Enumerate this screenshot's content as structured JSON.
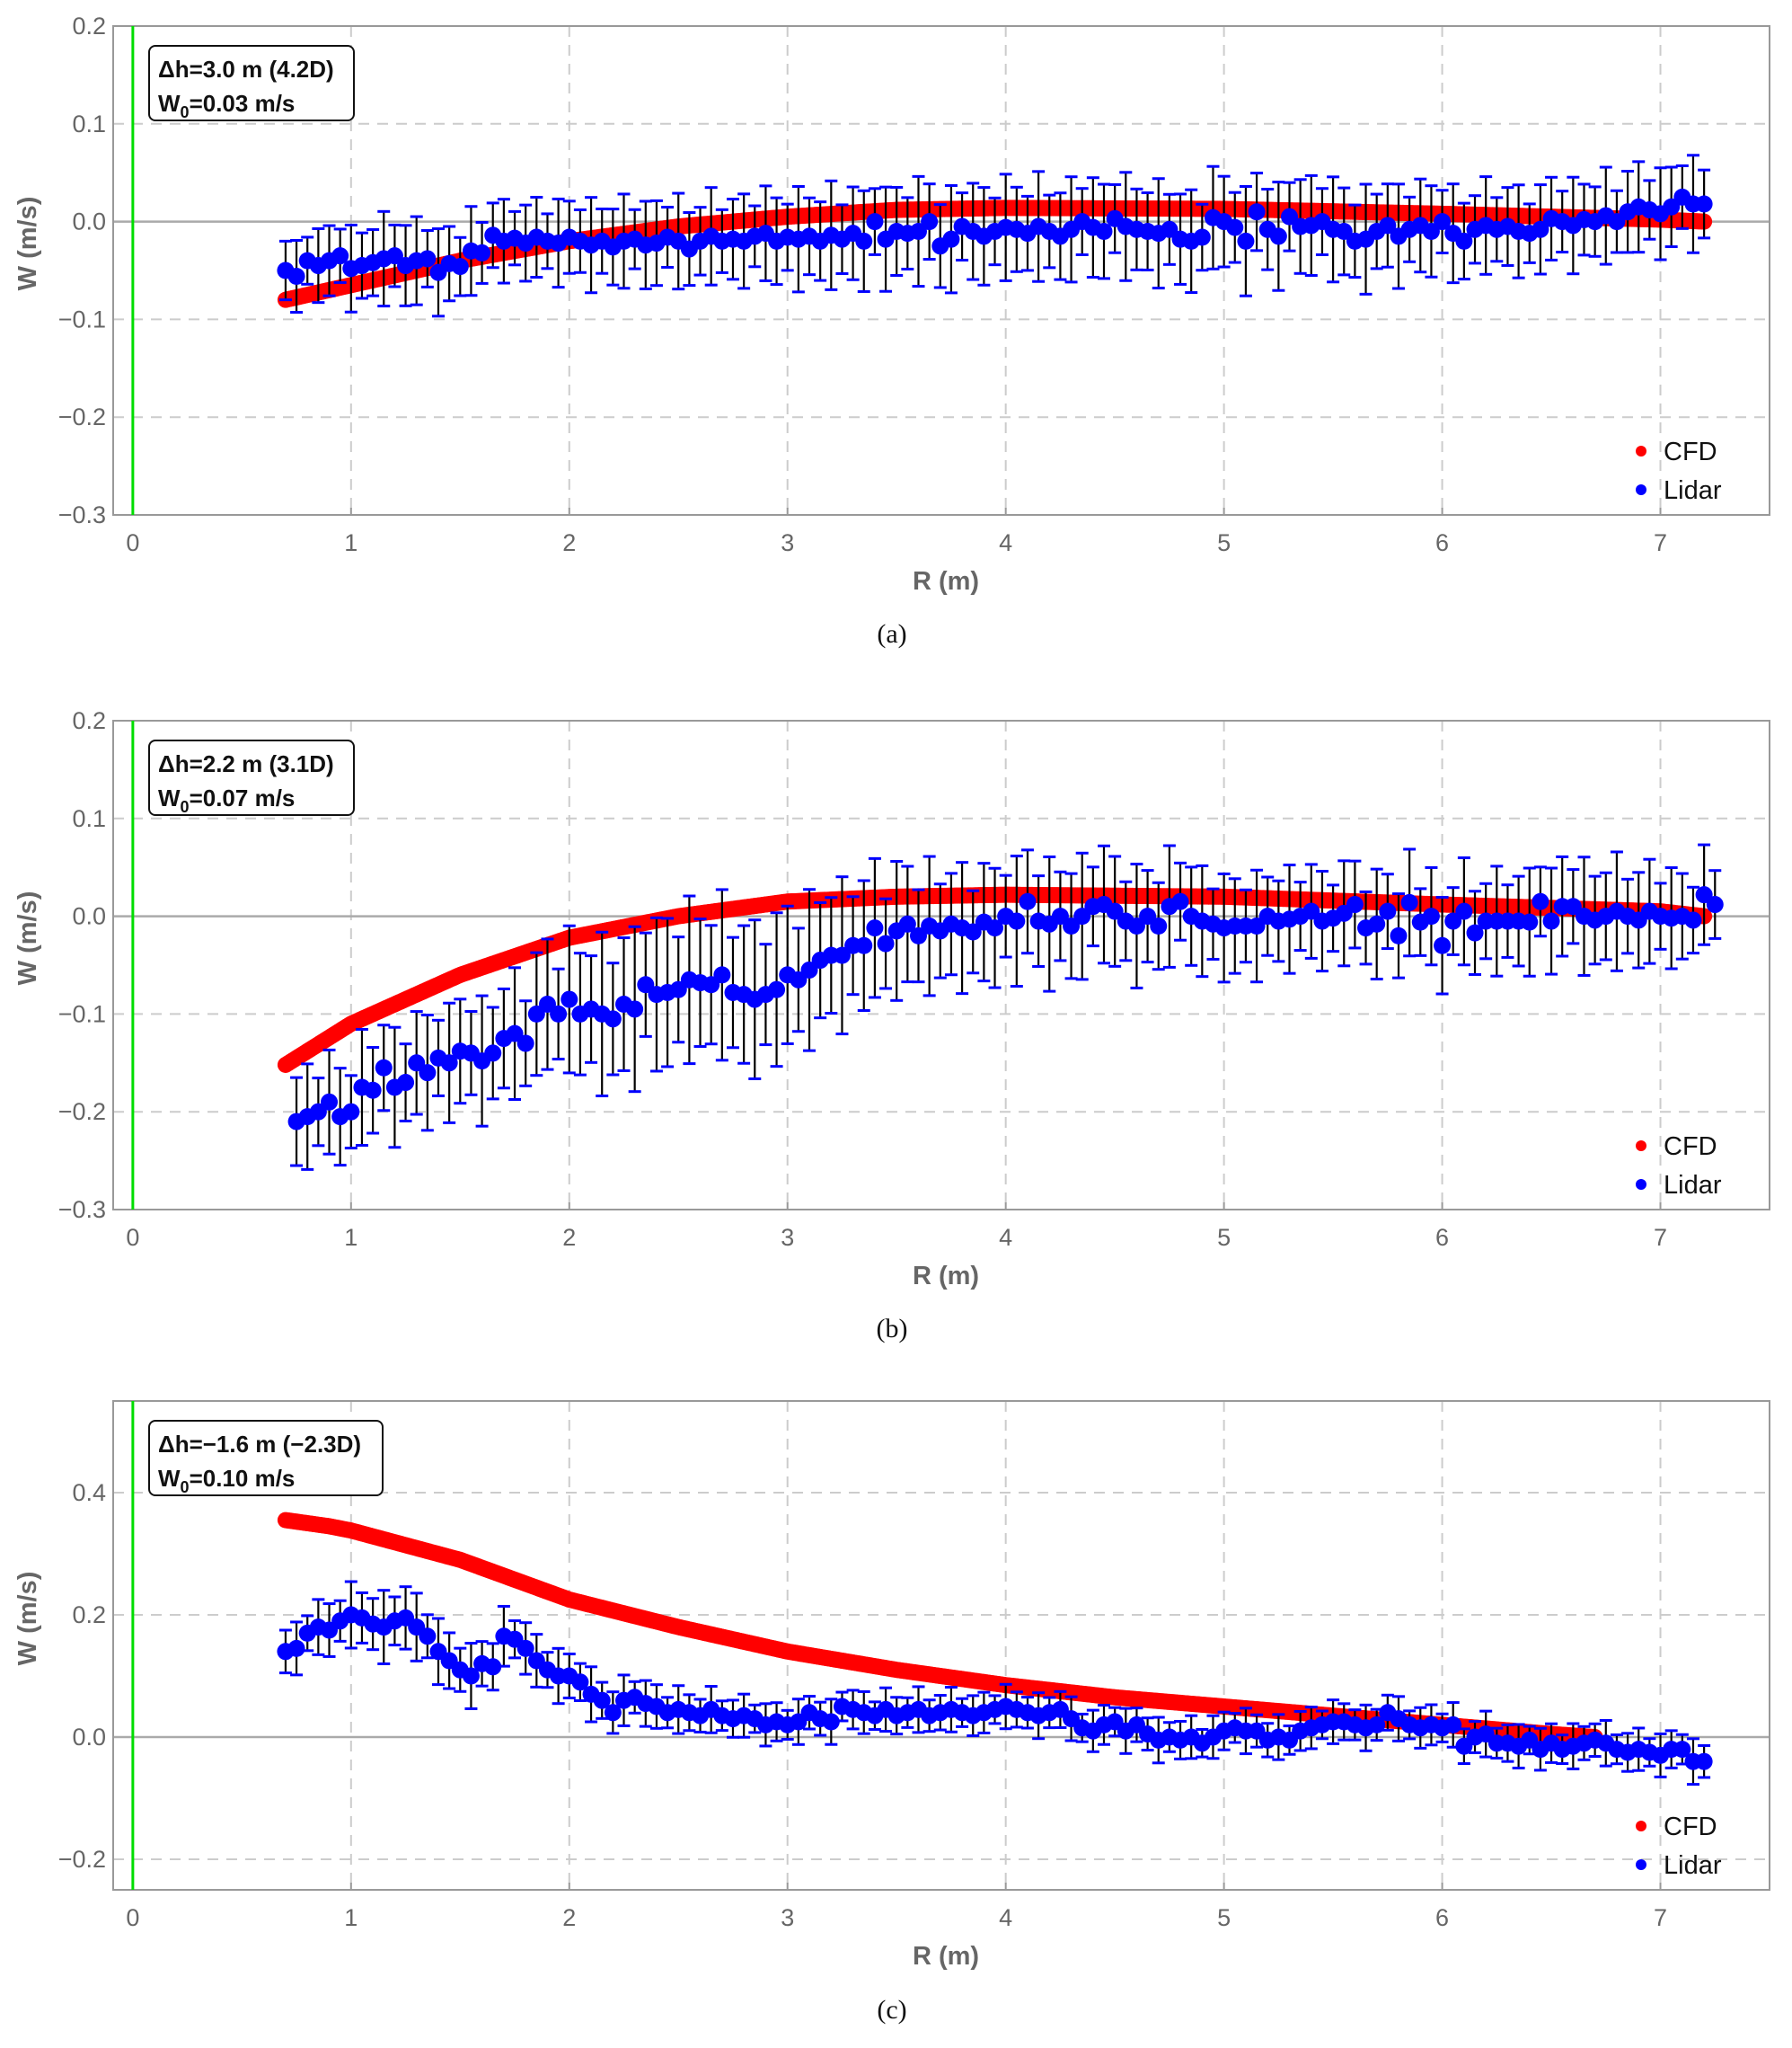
{
  "chart_data": [
    {
      "type": "scatter",
      "caption": "(a)",
      "annotation": {
        "line1": "Δh=3.0 m (4.2D)",
        "line2_prefix": "W",
        "line2_sub": "0",
        "line2_suffix": "=0.03 m/s"
      },
      "xlabel": "R (m)",
      "ylabel": "W (m/s)",
      "xlim": [
        -0.09,
        7.5
      ],
      "ylim": [
        -0.3,
        0.2
      ],
      "xticks": [
        0,
        1,
        2,
        3,
        4,
        5,
        6,
        7
      ],
      "xtick_labels": [
        "0",
        "1",
        "2",
        "3",
        "4",
        "5",
        "6",
        "7"
      ],
      "yticks": [
        0.2,
        0.1,
        0.0,
        -0.1,
        -0.2,
        -0.3
      ],
      "ytick_labels": [
        "0.2",
        "0.1",
        "0.0",
        "−0.1",
        "−0.2",
        "−0.3"
      ],
      "grid": true,
      "legend": {
        "placement": "bottom-right",
        "entries": [
          "CFD",
          "Lidar"
        ]
      },
      "cfd": {
        "name": "CFD",
        "color": "#ff0000",
        "r": [
          0.7,
          1.0,
          1.5,
          2.0,
          2.5,
          3.0,
          3.5,
          4.0,
          5.0,
          6.0,
          7.0,
          7.2
        ],
        "w": [
          -0.08,
          -0.065,
          -0.04,
          -0.02,
          -0.005,
          0.005,
          0.012,
          0.014,
          0.013,
          0.008,
          0.002,
          0.0
        ]
      },
      "lidar": {
        "name": "Lidar",
        "color": "#0000ff",
        "r_start": 0.7,
        "r_step": 0.05,
        "w": [
          -0.05,
          -0.056,
          -0.04,
          -0.045,
          -0.04,
          -0.035,
          -0.048,
          -0.045,
          -0.042,
          -0.038,
          -0.035,
          -0.045,
          -0.04,
          -0.038,
          -0.052,
          -0.043,
          -0.046,
          -0.03,
          -0.032,
          -0.014,
          -0.02,
          -0.017,
          -0.022,
          -0.016,
          -0.02,
          -0.022,
          -0.016,
          -0.02,
          -0.024,
          -0.02,
          -0.026,
          -0.02,
          -0.018,
          -0.024,
          -0.022,
          -0.016,
          -0.02,
          -0.028,
          -0.02,
          -0.015,
          -0.02,
          -0.018,
          -0.02,
          -0.015,
          -0.012,
          -0.02,
          -0.016,
          -0.018,
          -0.015,
          -0.02,
          -0.014,
          -0.018,
          -0.012,
          -0.02,
          0.0,
          -0.018,
          -0.01,
          -0.012,
          -0.01,
          0.0,
          -0.025,
          -0.018,
          -0.005,
          -0.01,
          -0.015,
          -0.01,
          -0.006,
          -0.008,
          -0.012,
          -0.005,
          -0.01,
          -0.015,
          -0.008,
          0.0,
          -0.006,
          -0.01,
          0.003,
          -0.005,
          -0.008,
          -0.01,
          -0.012,
          -0.008,
          -0.018,
          -0.02,
          -0.016,
          0.004,
          0.0,
          -0.006,
          -0.02,
          0.01,
          -0.008,
          -0.015,
          0.005,
          -0.005,
          -0.004,
          0.0,
          -0.008,
          -0.01,
          -0.02,
          -0.018,
          -0.01,
          -0.004,
          -0.015,
          -0.008,
          -0.004,
          -0.01,
          0.0,
          -0.012,
          -0.02,
          -0.008,
          -0.004,
          -0.008,
          -0.005,
          -0.01,
          -0.012,
          -0.008,
          0.003,
          0.0,
          -0.004,
          0.002,
          0.0,
          0.006,
          0.0,
          0.01,
          0.015,
          0.012,
          0.008,
          0.015,
          0.025,
          0.018,
          0.018
        ],
        "err_r": [
          0.7,
          1.2,
          1.7,
          2.2,
          2.7,
          3.2,
          3.7,
          4.2,
          4.7,
          5.2,
          5.7,
          6.2,
          6.7,
          7.2
        ],
        "err": [
          0.03,
          0.04,
          0.035,
          0.04,
          0.04,
          0.045,
          0.045,
          0.045,
          0.045,
          0.045,
          0.045,
          0.04,
          0.04,
          0.04
        ]
      }
    },
    {
      "type": "scatter",
      "caption": "(b)",
      "annotation": {
        "line1": "Δh=2.2 m (3.1D)",
        "line2_prefix": "W",
        "line2_sub": "0",
        "line2_suffix": "=0.07 m/s"
      },
      "xlabel": "R (m)",
      "ylabel": "W (m/s)",
      "xlim": [
        -0.09,
        7.5
      ],
      "ylim": [
        -0.3,
        0.2
      ],
      "xticks": [
        0,
        1,
        2,
        3,
        4,
        5,
        6,
        7
      ],
      "xtick_labels": [
        "0",
        "1",
        "2",
        "3",
        "4",
        "5",
        "6",
        "7"
      ],
      "yticks": [
        0.2,
        0.1,
        0.0,
        -0.1,
        -0.2,
        -0.3
      ],
      "ytick_labels": [
        "0.2",
        "0.1",
        "0.0",
        "−0.1",
        "−0.2",
        "−0.3"
      ],
      "grid": true,
      "legend": {
        "placement": "bottom-right",
        "entries": [
          "CFD",
          "Lidar"
        ]
      },
      "cfd": {
        "name": "CFD",
        "color": "#ff0000",
        "r": [
          0.7,
          1.0,
          1.5,
          2.0,
          2.5,
          3.0,
          3.5,
          4.0,
          5.0,
          6.0,
          7.0,
          7.2
        ],
        "w": [
          -0.152,
          -0.11,
          -0.06,
          -0.022,
          0.0,
          0.015,
          0.02,
          0.022,
          0.02,
          0.012,
          0.005,
          0.0
        ]
      },
      "lidar": {
        "name": "Lidar",
        "color": "#0000ff",
        "r_start": 0.75,
        "r_step": 0.05,
        "w": [
          -0.21,
          -0.205,
          -0.2,
          -0.19,
          -0.205,
          -0.2,
          -0.175,
          -0.178,
          -0.155,
          -0.175,
          -0.17,
          -0.15,
          -0.16,
          -0.145,
          -0.15,
          -0.138,
          -0.14,
          -0.148,
          -0.14,
          -0.125,
          -0.12,
          -0.13,
          -0.1,
          -0.09,
          -0.1,
          -0.085,
          -0.1,
          -0.095,
          -0.1,
          -0.105,
          -0.09,
          -0.095,
          -0.07,
          -0.08,
          -0.078,
          -0.075,
          -0.065,
          -0.068,
          -0.07,
          -0.06,
          -0.078,
          -0.08,
          -0.085,
          -0.08,
          -0.075,
          -0.06,
          -0.065,
          -0.055,
          -0.045,
          -0.04,
          -0.04,
          -0.03,
          -0.03,
          -0.012,
          -0.028,
          -0.015,
          -0.008,
          -0.02,
          -0.01,
          -0.015,
          -0.008,
          -0.012,
          -0.016,
          -0.006,
          -0.012,
          0.0,
          -0.005,
          0.015,
          -0.005,
          -0.008,
          0.0,
          -0.01,
          0.0,
          0.01,
          0.012,
          0.005,
          -0.005,
          -0.01,
          0.0,
          -0.01,
          0.01,
          0.015,
          0.0,
          -0.005,
          -0.008,
          -0.012,
          -0.01,
          -0.01,
          -0.01,
          0.0,
          -0.005,
          -0.003,
          0.0,
          0.005,
          -0.005,
          -0.002,
          0.003,
          0.012,
          -0.012,
          -0.008,
          0.005,
          -0.02,
          0.014,
          -0.006,
          0.0,
          -0.03,
          -0.005,
          0.005,
          -0.017,
          -0.005,
          -0.005,
          -0.005,
          -0.005,
          -0.006,
          0.015,
          -0.005,
          0.01,
          0.01,
          0.0,
          -0.004,
          0.0,
          0.005,
          0.0,
          -0.004,
          0.005,
          0.0,
          -0.002,
          0.0,
          -0.004,
          0.022,
          0.012
        ],
        "err_r": [
          0.75,
          1.25,
          1.75,
          2.25,
          2.75,
          3.25,
          3.75,
          4.25,
          4.75,
          5.25,
          5.75,
          6.25,
          6.75,
          7.25
        ],
        "err": [
          0.045,
          0.05,
          0.055,
          0.07,
          0.07,
          0.065,
          0.055,
          0.055,
          0.05,
          0.045,
          0.045,
          0.045,
          0.05,
          0.04
        ]
      }
    },
    {
      "type": "scatter",
      "caption": "(c)",
      "annotation": {
        "line1": "Δh=−1.6 m (−2.3D)",
        "line2_prefix": "W",
        "line2_sub": "0",
        "line2_suffix": "=0.10 m/s"
      },
      "xlabel": "R (m)",
      "ylabel": "W (m/s)",
      "xlim": [
        -0.09,
        7.5
      ],
      "ylim": [
        -0.25,
        0.55
      ],
      "xticks": [
        0,
        1,
        2,
        3,
        4,
        5,
        6,
        7
      ],
      "xtick_labels": [
        "0",
        "1",
        "2",
        "3",
        "4",
        "5",
        "6",
        "7"
      ],
      "yticks": [
        0.4,
        0.2,
        0.0,
        -0.2
      ],
      "ytick_labels": [
        "0.4",
        "0.2",
        "0.0",
        "−0.2"
      ],
      "grid": true,
      "legend": {
        "placement": "bottom-right",
        "entries": [
          "CFD",
          "Lidar"
        ]
      },
      "cfd": {
        "name": "CFD",
        "color": "#ff0000",
        "r": [
          0.7,
          0.9,
          1.0,
          1.5,
          2.0,
          2.5,
          3.0,
          3.5,
          4.0,
          4.5,
          5.0,
          5.5,
          6.0,
          6.5,
          6.7
        ],
        "w": [
          0.355,
          0.345,
          0.338,
          0.29,
          0.225,
          0.18,
          0.14,
          0.11,
          0.085,
          0.065,
          0.05,
          0.035,
          0.02,
          0.005,
          0.0
        ]
      },
      "lidar": {
        "name": "Lidar",
        "color": "#0000ff",
        "r_start": 0.7,
        "r_step": 0.05,
        "w": [
          0.14,
          0.145,
          0.17,
          0.18,
          0.175,
          0.19,
          0.2,
          0.195,
          0.185,
          0.18,
          0.19,
          0.195,
          0.18,
          0.165,
          0.14,
          0.125,
          0.11,
          0.1,
          0.12,
          0.115,
          0.165,
          0.16,
          0.145,
          0.125,
          0.11,
          0.1,
          0.1,
          0.09,
          0.07,
          0.06,
          0.04,
          0.06,
          0.065,
          0.055,
          0.05,
          0.04,
          0.045,
          0.04,
          0.035,
          0.045,
          0.035,
          0.03,
          0.035,
          0.03,
          0.02,
          0.025,
          0.02,
          0.025,
          0.04,
          0.03,
          0.025,
          0.05,
          0.045,
          0.04,
          0.035,
          0.045,
          0.035,
          0.04,
          0.045,
          0.035,
          0.04,
          0.045,
          0.04,
          0.035,
          0.04,
          0.045,
          0.05,
          0.045,
          0.04,
          0.035,
          0.04,
          0.045,
          0.03,
          0.015,
          0.01,
          0.02,
          0.025,
          0.01,
          0.02,
          0.005,
          -0.005,
          0.0,
          -0.005,
          0.0,
          -0.01,
          0.0,
          0.01,
          0.015,
          0.01,
          0.01,
          -0.005,
          0.0,
          -0.005,
          0.01,
          0.015,
          0.02,
          0.025,
          0.025,
          0.02,
          0.015,
          0.02,
          0.04,
          0.03,
          0.02,
          0.015,
          0.02,
          0.015,
          0.02,
          -0.015,
          0.0,
          0.005,
          -0.01,
          -0.01,
          -0.015,
          -0.005,
          -0.02,
          -0.01,
          -0.02,
          -0.015,
          -0.01,
          -0.005,
          -0.01,
          -0.02,
          -0.025,
          -0.02,
          -0.025,
          -0.03,
          -0.02,
          -0.02,
          -0.04,
          -0.04
        ],
        "err_r": [
          0.7,
          1.2,
          1.7,
          2.2,
          2.7,
          3.2,
          3.7,
          4.2,
          4.7,
          5.2,
          5.7,
          6.2,
          6.7,
          7.2
        ],
        "err": [
          0.035,
          0.05,
          0.04,
          0.035,
          0.03,
          0.03,
          0.03,
          0.03,
          0.03,
          0.03,
          0.03,
          0.03,
          0.03,
          0.03
        ]
      }
    }
  ],
  "colors": {
    "cfd": "#ff0000",
    "lidar": "#0000ff",
    "zero_marker": "#00dd00",
    "axis": "#999999",
    "grid": "#cccccc"
  }
}
